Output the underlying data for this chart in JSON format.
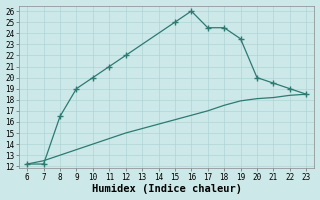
{
  "xlabel": "Humidex (Indice chaleur)",
  "line1_x": [
    6,
    7,
    8,
    9,
    10,
    11,
    12,
    15,
    16,
    17,
    18,
    19,
    20,
    21,
    22,
    23
  ],
  "line1_y": [
    12.2,
    12.2,
    16.5,
    19,
    20,
    21,
    22,
    25,
    26,
    24.5,
    24.5,
    23.5,
    20,
    19.5,
    19,
    18.5
  ],
  "line2_x": [
    6,
    7,
    8,
    9,
    10,
    11,
    12,
    13,
    14,
    15,
    16,
    17,
    18,
    19,
    20,
    21,
    22,
    23
  ],
  "line2_y": [
    12.2,
    12.5,
    13.0,
    13.5,
    14.0,
    14.5,
    15.0,
    15.4,
    15.8,
    16.2,
    16.6,
    17.0,
    17.5,
    17.9,
    18.1,
    18.2,
    18.4,
    18.5
  ],
  "line_color": "#2d7a72",
  "bg_color": "#cce8e8",
  "grid_major_color": "#afd4d4",
  "grid_minor_color": "#c2dcdc",
  "xlim": [
    5.5,
    23.5
  ],
  "ylim": [
    11.8,
    26.5
  ],
  "xticks": [
    6,
    7,
    8,
    9,
    10,
    11,
    12,
    13,
    14,
    15,
    16,
    17,
    18,
    19,
    20,
    21,
    22,
    23
  ],
  "yticks": [
    12,
    13,
    14,
    15,
    16,
    17,
    18,
    19,
    20,
    21,
    22,
    23,
    24,
    25,
    26
  ],
  "tick_fontsize": 5.5,
  "xlabel_fontsize": 7.5
}
